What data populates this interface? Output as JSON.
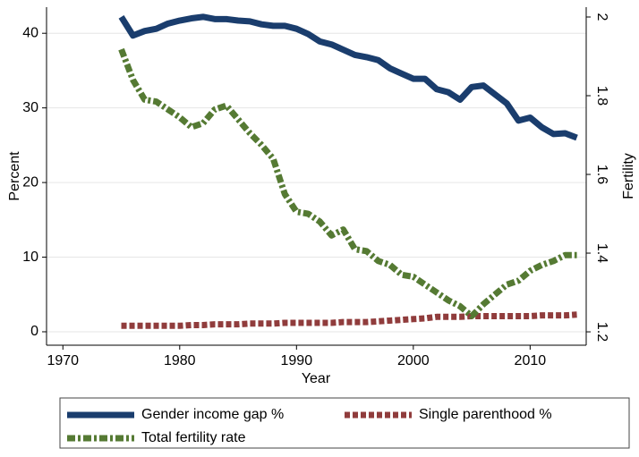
{
  "chart_data": {
    "type": "line",
    "x_label": "Year",
    "y_label": "Percent",
    "y2_label": "Fertility",
    "x": [
      1975,
      1976,
      1977,
      1978,
      1979,
      1980,
      1981,
      1982,
      1983,
      1984,
      1985,
      1986,
      1987,
      1988,
      1989,
      1990,
      1991,
      1992,
      1993,
      1994,
      1995,
      1996,
      1997,
      1998,
      1999,
      2000,
      2001,
      2002,
      2003,
      2004,
      2005,
      2006,
      2007,
      2008,
      2009,
      2010,
      2011,
      2012,
      2013,
      2014
    ],
    "series": [
      {
        "name": "Gender income gap %",
        "color": "#1a3d6d",
        "values": [
          42.2,
          39.7,
          40.3,
          40.6,
          41.3,
          41.7,
          42.0,
          42.2,
          41.9,
          41.9,
          41.7,
          41.6,
          41.2,
          41.0,
          41.0,
          40.6,
          39.9,
          38.9,
          38.5,
          37.8,
          37.1,
          36.8,
          36.4,
          35.3,
          34.6,
          33.9,
          33.9,
          32.5,
          32.1,
          31.1,
          32.8,
          33.0,
          31.8,
          30.6,
          28.3,
          28.7,
          27.4,
          26.5,
          26.6,
          26.0
        ]
      },
      {
        "name": "Single parenthood %",
        "color": "#903c3c",
        "values": [
          0.8,
          0.8,
          0.8,
          0.8,
          0.8,
          0.8,
          0.9,
          0.9,
          1.0,
          1.0,
          1.0,
          1.1,
          1.1,
          1.1,
          1.2,
          1.2,
          1.2,
          1.2,
          1.2,
          1.3,
          1.3,
          1.3,
          1.4,
          1.5,
          1.6,
          1.7,
          1.8,
          2.0,
          2.0,
          2.0,
          2.1,
          2.1,
          2.1,
          2.1,
          2.1,
          2.1,
          2.2,
          2.2,
          2.2,
          2.3
        ]
      },
      {
        "name": "Total fertility rate",
        "color": "#557a33",
        "axis": "y2",
        "values": [
          1.918,
          1.84,
          1.79,
          1.785,
          1.765,
          1.745,
          1.72,
          1.73,
          1.765,
          1.775,
          1.74,
          1.705,
          1.675,
          1.64,
          1.55,
          1.505,
          1.5,
          1.48,
          1.445,
          1.46,
          1.41,
          1.405,
          1.38,
          1.37,
          1.345,
          1.34,
          1.32,
          1.3,
          1.28,
          1.265,
          1.24,
          1.27,
          1.295,
          1.32,
          1.33,
          1.355,
          1.37,
          1.38,
          1.395,
          1.395
        ]
      }
    ],
    "xlim": [
      1968.6,
      2014.8
    ],
    "xticks": [
      1970,
      1980,
      1990,
      2000,
      2010
    ],
    "ylim": [
      -1.8,
      43.5
    ],
    "yticks": [
      0,
      10,
      20,
      30,
      40
    ],
    "y2lim": [
      1.166,
      2.025
    ],
    "y2ticks": [
      {
        "value": 1.2,
        "label": "1.2"
      },
      {
        "value": 1.4,
        "label": "1.4"
      },
      {
        "value": 1.6,
        "label": "1.6"
      },
      {
        "value": 1.8,
        "label": "1.8"
      },
      2
    ],
    "grid": true
  }
}
